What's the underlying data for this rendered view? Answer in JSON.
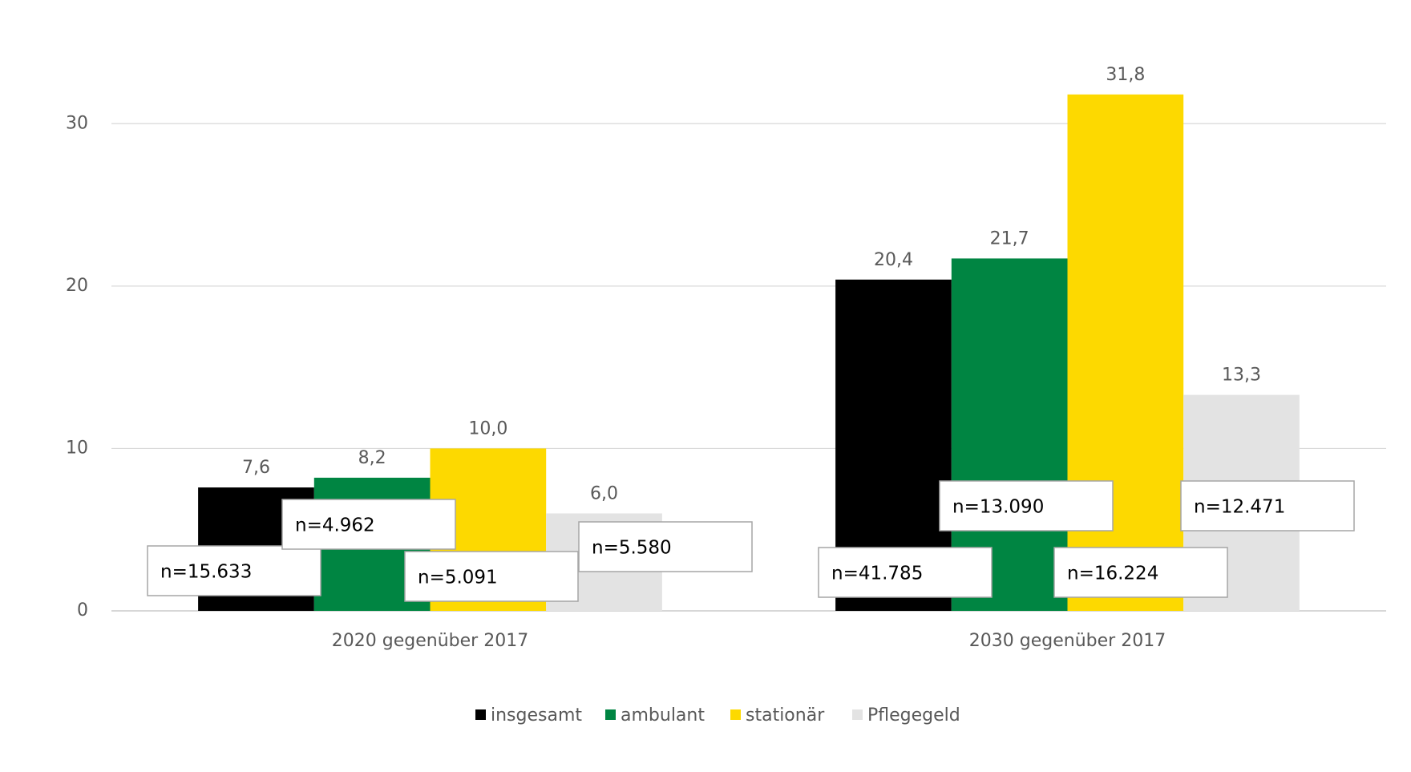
{
  "chart_data": {
    "type": "bar",
    "categories": [
      "2020 gegenüber 2017",
      "2030 gegenüber 2017"
    ],
    "series": [
      {
        "name": "insgesamt",
        "color": "#000000",
        "values": [
          7.6,
          20.4
        ],
        "value_labels": [
          "7,6",
          "20,4"
        ],
        "n_labels": [
          "n=15.633",
          "n=41.785"
        ]
      },
      {
        "name": "ambulant",
        "color": "#008542",
        "values": [
          8.2,
          21.7
        ],
        "value_labels": [
          "8,2",
          "21,7"
        ],
        "n_labels": [
          "n=4.962",
          "n=13.090"
        ]
      },
      {
        "name": "stationär",
        "color": "#fdd900",
        "values": [
          10.0,
          31.8
        ],
        "value_labels": [
          "10,0",
          "31,8"
        ],
        "n_labels": [
          "n=5.091",
          "n=16.224"
        ]
      },
      {
        "name": "Pflegegeld",
        "color": "#e3e3e3",
        "values": [
          6.0,
          13.3
        ],
        "value_labels": [
          "6,0",
          "13,3"
        ],
        "n_labels": [
          "n=5.580",
          "n=12.471"
        ]
      }
    ],
    "ylim": [
      0,
      35
    ],
    "yticks": [
      0,
      10,
      20,
      30
    ],
    "grid": true,
    "legend": "bottom"
  }
}
